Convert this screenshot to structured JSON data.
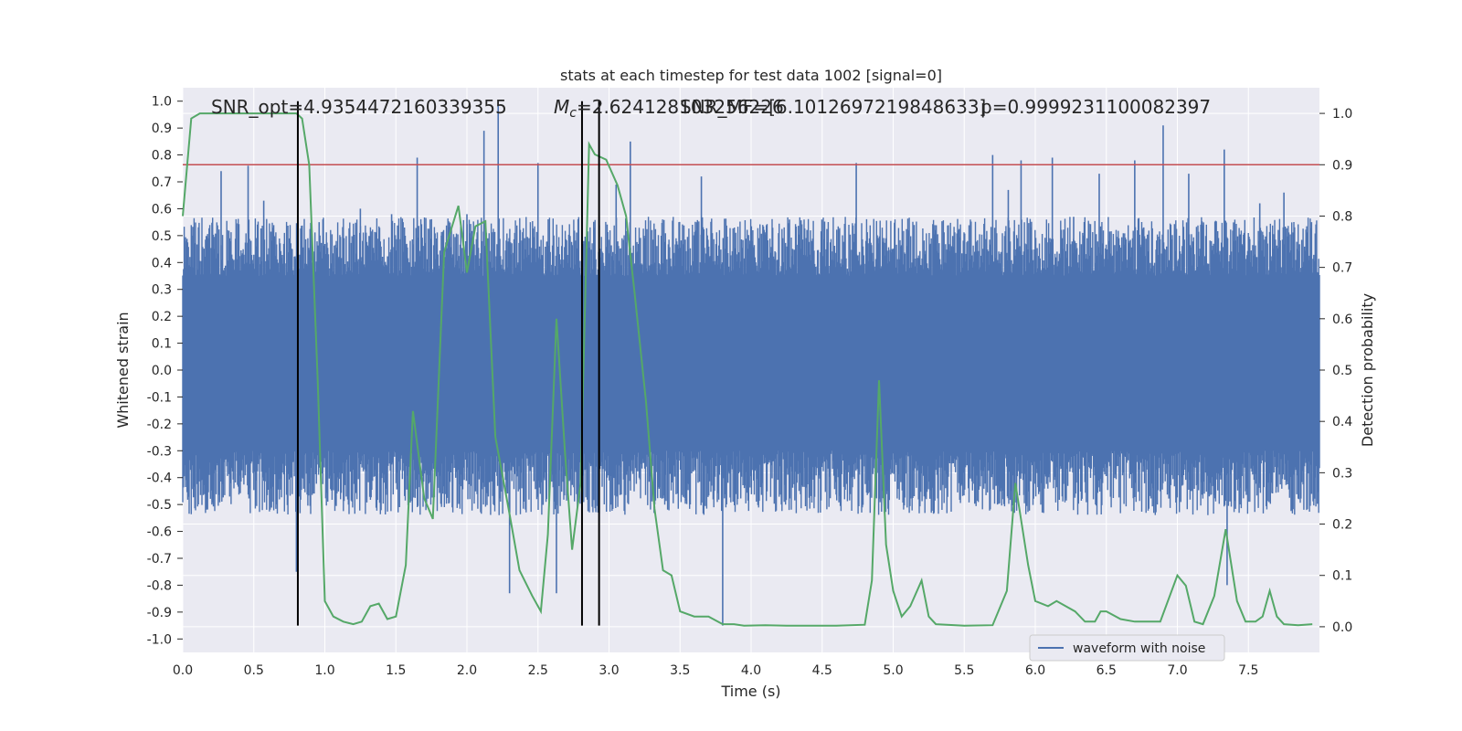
{
  "chart_data": {
    "type": "line",
    "title": "stats at each timestep for test data 1002 [signal=0]",
    "xlabel": "Time (s)",
    "ylabel": "Whitened strain",
    "y2label": "Detection probability",
    "xlim": [
      0,
      8
    ],
    "ylim": [
      -1.05,
      1.05
    ],
    "y2lim": [
      -0.05,
      1.05
    ],
    "xticks": [
      0.0,
      0.5,
      1.0,
      1.5,
      2.0,
      2.5,
      3.0,
      3.5,
      4.0,
      4.5,
      5.0,
      5.5,
      6.0,
      6.5,
      7.0,
      7.5
    ],
    "xtick_labels": [
      "0.0",
      "0.5",
      "1.0",
      "1.5",
      "2.0",
      "2.5",
      "3.0",
      "3.5",
      "4.0",
      "4.5",
      "5.0",
      "5.5",
      "6.0",
      "6.5",
      "7.0",
      "7.5"
    ],
    "yticks": [
      1.0,
      0.9,
      0.8,
      0.7,
      0.6,
      0.5,
      0.4,
      0.3,
      0.2,
      0.1,
      0.0,
      -0.1,
      -0.2,
      -0.3,
      -0.4,
      -0.5,
      -0.6,
      -0.7,
      -0.8,
      -0.9,
      -1.0
    ],
    "ytick_labels": [
      "1.0",
      "0.9",
      "0.8",
      "0.7",
      "0.6",
      "0.5",
      "0.4",
      "0.3",
      "0.2",
      "0.1",
      "0.0",
      "-0.1",
      "-0.2",
      "-0.3",
      "-0.4",
      "-0.5",
      "-0.6",
      "-0.7",
      "-0.8",
      "-0.9",
      "-1.0"
    ],
    "y2ticks": [
      1.0,
      0.9,
      0.8,
      0.7,
      0.6,
      0.5,
      0.4,
      0.3,
      0.2,
      0.1,
      0.0
    ],
    "y2tick_labels": [
      "1.0",
      "0.9",
      "0.8",
      "0.7",
      "0.6",
      "0.5",
      "0.4",
      "0.3",
      "0.2",
      "0.1",
      "0.0"
    ],
    "grid": true,
    "legend": {
      "position": "lower-right",
      "entries": [
        "waveform with noise"
      ]
    },
    "annotations": [
      "SNR_opt=4.9354472160339355",
      "M_c=2.624128103256226",
      "SNR_MF=[6.1012697219848633]",
      "p=0.9999231100082397"
    ],
    "threshold_line": {
      "y": 0.9,
      "axis": "right",
      "color": "#c44e52"
    },
    "vertical_lines": [
      {
        "x": 0.81,
        "y_from": -0.95,
        "y_to": 1.0
      },
      {
        "x": 2.81,
        "y_from": -0.95,
        "y_to": 1.0
      },
      {
        "x": 2.93,
        "y_from": -0.95,
        "y_to": 1.0
      }
    ],
    "series": [
      {
        "name": "waveform with noise",
        "kind": "noise-band",
        "axis": "left",
        "color": "#4c72b0",
        "band_values": [
          -0.3,
          0.35
        ],
        "peaks": [
          [
            0.02,
            0.48
          ],
          [
            0.07,
            0.5
          ],
          [
            0.27,
            0.74
          ],
          [
            0.46,
            0.76
          ],
          [
            0.57,
            0.63
          ],
          [
            0.77,
            0.45
          ],
          [
            0.8,
            -0.75
          ],
          [
            0.96,
            0.55
          ],
          [
            1.25,
            0.6
          ],
          [
            1.47,
            0.58
          ],
          [
            1.65,
            0.79
          ],
          [
            1.82,
            0.5
          ],
          [
            2.0,
            0.58
          ],
          [
            2.12,
            0.89
          ],
          [
            2.22,
            0.99
          ],
          [
            2.3,
            -0.83
          ],
          [
            2.5,
            0.77
          ],
          [
            2.63,
            -0.83
          ],
          [
            3.05,
            0.69
          ],
          [
            3.15,
            0.85
          ],
          [
            3.65,
            0.72
          ],
          [
            3.8,
            -0.95
          ],
          [
            4.27,
            0.56
          ],
          [
            4.74,
            0.77
          ],
          [
            4.96,
            -0.45
          ],
          [
            5.7,
            0.8
          ],
          [
            5.81,
            0.67
          ],
          [
            5.9,
            0.78
          ],
          [
            6.12,
            0.79
          ],
          [
            6.27,
            0.57
          ],
          [
            6.45,
            0.73
          ],
          [
            6.7,
            0.78
          ],
          [
            6.9,
            0.91
          ],
          [
            7.08,
            0.73
          ],
          [
            7.33,
            0.82
          ],
          [
            7.35,
            -0.8
          ],
          [
            7.58,
            0.62
          ],
          [
            7.75,
            0.66
          ]
        ]
      },
      {
        "name": "detection probability",
        "kind": "line",
        "axis": "right",
        "color": "#55a868",
        "x": [
          0.0,
          0.06,
          0.12,
          0.2,
          0.3,
          0.4,
          0.5,
          0.6,
          0.7,
          0.75,
          0.8,
          0.84,
          0.89,
          0.95,
          1.0,
          1.06,
          1.13,
          1.2,
          1.26,
          1.32,
          1.38,
          1.44,
          1.5,
          1.57,
          1.62,
          1.7,
          1.76,
          1.84,
          1.94,
          2.0,
          2.06,
          2.13,
          2.2,
          2.3,
          2.37,
          2.46,
          2.52,
          2.57,
          2.63,
          2.69,
          2.74,
          2.8,
          2.86,
          2.9,
          2.98,
          3.06,
          3.12,
          3.18,
          3.26,
          3.32,
          3.38,
          3.44,
          3.5,
          3.6,
          3.65,
          3.7,
          3.8,
          3.88,
          3.95,
          4.1,
          4.25,
          4.4,
          4.6,
          4.8,
          4.85,
          4.9,
          4.95,
          5.0,
          5.06,
          5.12,
          5.2,
          5.25,
          5.3,
          5.5,
          5.7,
          5.8,
          5.86,
          5.95,
          6.0,
          6.09,
          6.15,
          6.28,
          6.35,
          6.42,
          6.46,
          6.5,
          6.6,
          6.7,
          6.8,
          6.88,
          7.0,
          7.06,
          7.12,
          7.18,
          7.26,
          7.34,
          7.42,
          7.48,
          7.55,
          7.6,
          7.65,
          7.7,
          7.75,
          7.85,
          7.95
        ],
        "y": [
          0.8,
          0.99,
          1.0,
          1.0,
          1.0,
          1.0,
          1.0,
          1.0,
          1.0,
          1.0,
          1.0,
          0.99,
          0.9,
          0.48,
          0.05,
          0.02,
          0.01,
          0.005,
          0.01,
          0.04,
          0.045,
          0.015,
          0.02,
          0.12,
          0.42,
          0.25,
          0.21,
          0.73,
          0.82,
          0.69,
          0.78,
          0.79,
          0.37,
          0.22,
          0.11,
          0.06,
          0.03,
          0.18,
          0.6,
          0.34,
          0.15,
          0.28,
          0.94,
          0.92,
          0.91,
          0.86,
          0.8,
          0.65,
          0.44,
          0.23,
          0.11,
          0.1,
          0.03,
          0.02,
          0.02,
          0.02,
          0.005,
          0.005,
          0.002,
          0.003,
          0.002,
          0.002,
          0.002,
          0.004,
          0.09,
          0.48,
          0.16,
          0.07,
          0.02,
          0.04,
          0.09,
          0.02,
          0.005,
          0.002,
          0.003,
          0.07,
          0.28,
          0.12,
          0.05,
          0.04,
          0.05,
          0.03,
          0.01,
          0.01,
          0.03,
          0.03,
          0.015,
          0.01,
          0.01,
          0.01,
          0.1,
          0.08,
          0.01,
          0.005,
          0.06,
          0.19,
          0.05,
          0.01,
          0.01,
          0.02,
          0.07,
          0.02,
          0.005,
          0.003,
          0.005
        ]
      }
    ]
  }
}
